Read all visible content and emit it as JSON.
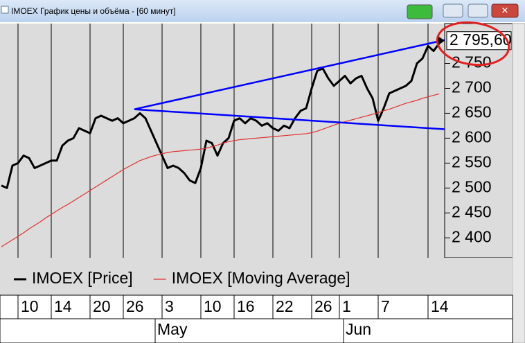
{
  "window": {
    "title": "IMOEX График цены и объёма - [60 минут]"
  },
  "chart_data": {
    "type": "line",
    "categories": [
      null,
      null,
      null,
      "10",
      null,
      null,
      null,
      null,
      null,
      "14",
      null,
      null,
      null,
      null,
      null,
      null,
      "20",
      null,
      null,
      null,
      null,
      null,
      "26",
      null,
      null,
      null,
      null,
      null,
      null,
      "3",
      null,
      null,
      null,
      null,
      null,
      null,
      "10",
      null,
      null,
      null,
      null,
      null,
      "16",
      null,
      null,
      null,
      null,
      null,
      null,
      "22",
      null,
      null,
      null,
      null,
      null,
      null,
      "26",
      null,
      null,
      null,
      null,
      "1",
      null,
      null,
      null,
      null,
      null,
      null,
      "7",
      null,
      null,
      null,
      null,
      null,
      null,
      null,
      null,
      "14",
      null,
      null
    ],
    "months": [
      null,
      null,
      null,
      null,
      null,
      null,
      null,
      null,
      null,
      null,
      null,
      null,
      null,
      null,
      null,
      null,
      null,
      null,
      null,
      null,
      null,
      null,
      null,
      null,
      null,
      null,
      null,
      "May",
      null,
      null,
      null,
      null,
      null,
      null,
      null,
      null,
      null,
      null,
      null,
      null,
      null,
      null,
      null,
      null,
      null,
      null,
      null,
      null,
      null,
      null,
      null,
      null,
      null,
      null,
      null,
      null,
      null,
      null,
      null,
      null,
      null,
      "Jun",
      null,
      null,
      null,
      null,
      null,
      null,
      null,
      null,
      null,
      null,
      null,
      null,
      null,
      null,
      null,
      null,
      null,
      null
    ],
    "series": [
      {
        "name": "IMOEX [Price]",
        "color": "#000000",
        "values": [
          2505,
          2500,
          2545,
          2550,
          2565,
          2560,
          2540,
          2545,
          2550,
          2555,
          2555,
          2585,
          2595,
          2600,
          2620,
          2615,
          2610,
          2640,
          2645,
          2640,
          2635,
          2640,
          2630,
          2635,
          2640,
          2650,
          2640,
          2615,
          2590,
          2565,
          2540,
          2545,
          2540,
          2530,
          2515,
          2510,
          2540,
          2595,
          2590,
          2565,
          2590,
          2600,
          2635,
          2640,
          2630,
          2640,
          2635,
          2625,
          2630,
          2620,
          2615,
          2625,
          2620,
          2640,
          2655,
          2660,
          2700,
          2735,
          2740,
          2720,
          2705,
          2715,
          2725,
          2710,
          2720,
          2725,
          2700,
          2680,
          2635,
          2660,
          2690,
          2695,
          2700,
          2705,
          2715,
          2750,
          2760,
          2785,
          2775,
          2790
        ]
      },
      {
        "name": "IMOEX [Moving Average]",
        "color": "#e03030",
        "values": [
          2382,
          2389,
          2396,
          2403,
          2410,
          2418,
          2425,
          2432,
          2440,
          2447,
          2454,
          2461,
          2467,
          2474,
          2481,
          2488,
          2495,
          2502,
          2509,
          2516,
          2523,
          2530,
          2537,
          2543,
          2549,
          2555,
          2559,
          2563,
          2566,
          2569,
          2571,
          2573,
          2574,
          2575,
          2576,
          2577,
          2578,
          2580,
          2583,
          2586,
          2590,
          2593,
          2595,
          2597,
          2598,
          2599,
          2600,
          2601,
          2602,
          2603,
          2604,
          2605,
          2606,
          2607,
          2608,
          2609,
          2611,
          2614,
          2618,
          2622,
          2626,
          2630,
          2633,
          2636,
          2639,
          2642,
          2645,
          2648,
          2651,
          2655,
          2658,
          2662,
          2666,
          2670,
          2673,
          2676,
          2680,
          2683,
          2686,
          2689
        ]
      }
    ],
    "trend_lines": [
      {
        "color": "#0000ff",
        "x": [
          24,
          80
        ],
        "values": [
          2658,
          2797
        ]
      },
      {
        "color": "#0000ff",
        "x": [
          24,
          80
        ],
        "values": [
          2658,
          2618
        ]
      }
    ],
    "last_price": {
      "value": 2795.6,
      "label": "2 795,60"
    },
    "ylim": [
      2360,
      2830
    ],
    "yticks": [
      {
        "value": 2400,
        "label": "2 400"
      },
      {
        "value": 2450,
        "label": "2 450"
      },
      {
        "value": 2500,
        "label": "2 500"
      },
      {
        "value": 2550,
        "label": "2 550"
      },
      {
        "value": 2600,
        "label": "2 600"
      },
      {
        "value": 2650,
        "label": "2 650"
      },
      {
        "value": 2700,
        "label": "2 700"
      },
      {
        "value": 2750,
        "label": "2 750"
      }
    ],
    "grid": true
  }
}
